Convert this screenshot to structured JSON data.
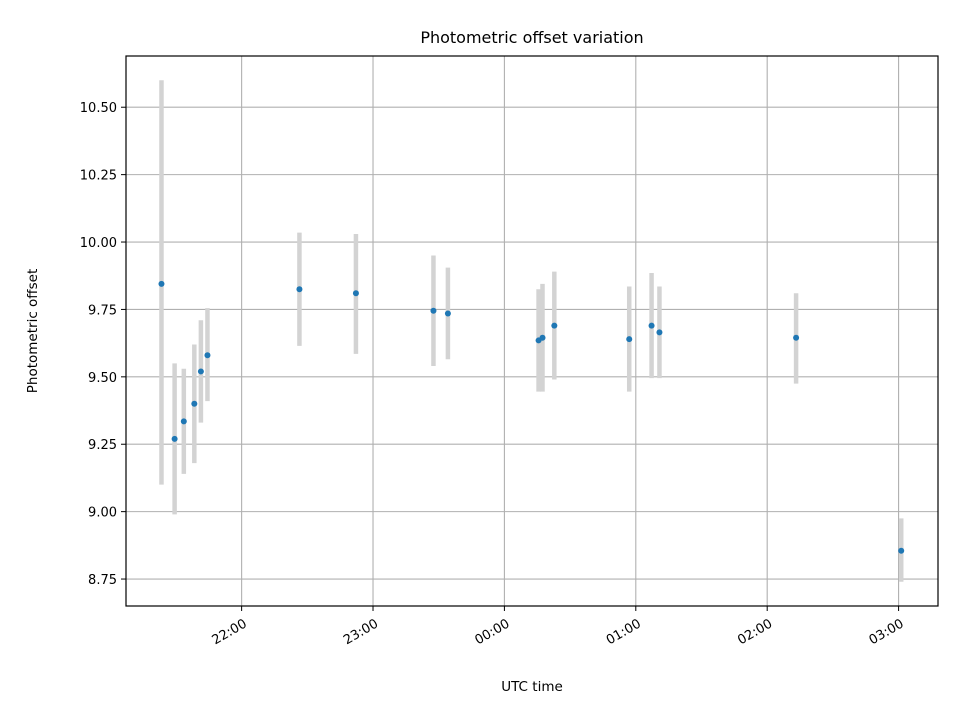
{
  "chart_data": {
    "type": "scatter",
    "title": "Photometric offset variation",
    "xlabel": "UTC time",
    "ylabel": "Photometric offset",
    "x_axis_type": "time",
    "x_unit": "UTC hours (hours after 00:00 may exceed 24 for the following day)",
    "xlim": [
      21.12,
      27.3
    ],
    "ylim": [
      8.65,
      10.69
    ],
    "x_ticks": [
      {
        "value": 22,
        "label": "22:00"
      },
      {
        "value": 23,
        "label": "23:00"
      },
      {
        "value": 24,
        "label": "00:00"
      },
      {
        "value": 25,
        "label": "01:00"
      },
      {
        "value": 26,
        "label": "02:00"
      },
      {
        "value": 27,
        "label": "03:00"
      }
    ],
    "y_ticks": [
      {
        "value": 8.75,
        "label": "8.75"
      },
      {
        "value": 9.0,
        "label": "9.00"
      },
      {
        "value": 9.25,
        "label": "9.25"
      },
      {
        "value": 9.5,
        "label": "9.50"
      },
      {
        "value": 9.75,
        "label": "9.75"
      },
      {
        "value": 10.0,
        "label": "10.00"
      },
      {
        "value": 10.25,
        "label": "10.25"
      },
      {
        "value": 10.5,
        "label": "10.50"
      }
    ],
    "grid": true,
    "colors": {
      "point": "#1f77b4",
      "errorbar": "#d3d3d3",
      "grid": "#b0b0b0",
      "axes": "#000000"
    },
    "series": [
      {
        "points": [
          {
            "time": "21:23",
            "x": 21.39,
            "y": 9.845,
            "err_low": 9.1,
            "err_high": 10.6
          },
          {
            "time": "21:29",
            "x": 21.49,
            "y": 9.27,
            "err_low": 8.99,
            "err_high": 9.55
          },
          {
            "time": "21:33",
            "x": 21.56,
            "y": 9.335,
            "err_low": 9.14,
            "err_high": 9.53
          },
          {
            "time": "21:38",
            "x": 21.64,
            "y": 9.4,
            "err_low": 9.18,
            "err_high": 9.62
          },
          {
            "time": "21:42",
            "x": 21.69,
            "y": 9.52,
            "err_low": 9.33,
            "err_high": 9.71
          },
          {
            "time": "21:45",
            "x": 21.74,
            "y": 9.58,
            "err_low": 9.41,
            "err_high": 9.755
          },
          {
            "time": "22:27",
            "x": 22.44,
            "y": 9.825,
            "err_low": 9.615,
            "err_high": 10.035
          },
          {
            "time": "22:52",
            "x": 22.87,
            "y": 9.81,
            "err_low": 9.585,
            "err_high": 10.03
          },
          {
            "time": "23:28",
            "x": 23.46,
            "y": 9.745,
            "err_low": 9.54,
            "err_high": 9.95
          },
          {
            "time": "23:35",
            "x": 23.57,
            "y": 9.735,
            "err_low": 9.565,
            "err_high": 9.905
          },
          {
            "time": "00:15",
            "x": 24.26,
            "y": 9.635,
            "err_low": 9.445,
            "err_high": 9.825
          },
          {
            "time": "00:17",
            "x": 24.29,
            "y": 9.645,
            "err_low": 9.445,
            "err_high": 9.845
          },
          {
            "time": "00:23",
            "x": 24.38,
            "y": 9.69,
            "err_low": 9.49,
            "err_high": 9.89
          },
          {
            "time": "00:57",
            "x": 24.95,
            "y": 9.64,
            "err_low": 9.445,
            "err_high": 9.835
          },
          {
            "time": "01:07",
            "x": 25.12,
            "y": 9.69,
            "err_low": 9.495,
            "err_high": 9.885
          },
          {
            "time": "01:11",
            "x": 25.18,
            "y": 9.665,
            "err_low": 9.495,
            "err_high": 9.835
          },
          {
            "time": "02:13",
            "x": 26.22,
            "y": 9.645,
            "err_low": 9.475,
            "err_high": 9.81
          },
          {
            "time": "03:01",
            "x": 27.02,
            "y": 8.855,
            "err_low": 8.74,
            "err_high": 8.975
          }
        ]
      }
    ]
  }
}
